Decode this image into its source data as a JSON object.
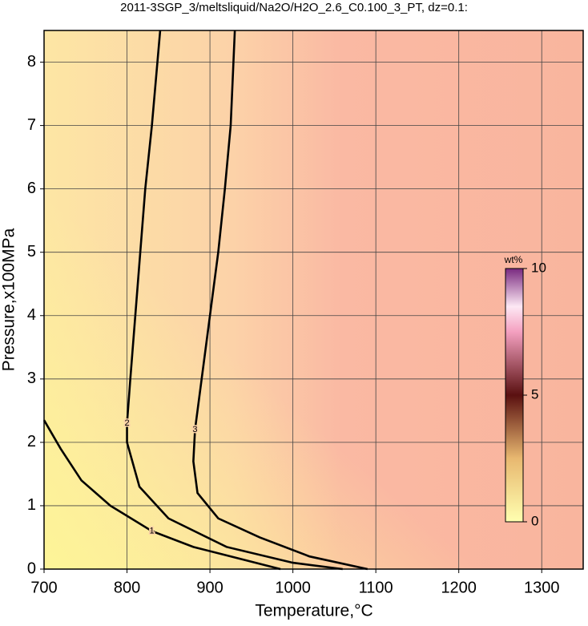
{
  "chart_data": {
    "type": "contour",
    "title": "2011-3SGP_3/meltsliquid/Na2O/H2O_2.6_C0.100_3_PT, dz=0.1:",
    "x_label": "Temperature,°C",
    "y_label": "Pressure,x100MPa",
    "xlim": [
      700,
      1350
    ],
    "ylim": [
      0,
      8.5
    ],
    "xticks": [
      700,
      800,
      900,
      1000,
      1100,
      1200,
      1300
    ],
    "yticks": [
      0,
      1,
      2,
      3,
      4,
      5,
      6,
      7,
      8
    ],
    "grid": true,
    "contours": [
      {
        "level": 1,
        "x": [
          700,
          720,
          745,
          780,
          830,
          880,
          940,
          985
        ],
        "y": [
          2.35,
          1.9,
          1.4,
          1.0,
          0.6,
          0.35,
          0.15,
          0
        ]
      },
      {
        "level": 2,
        "x": [
          840,
          830,
          822,
          816,
          810,
          804,
          800,
          800,
          815,
          850,
          920,
          1000,
          1060
        ],
        "y": [
          8.5,
          7,
          6,
          5,
          4,
          3,
          2.3,
          2.0,
          1.3,
          0.8,
          0.35,
          0.1,
          0
        ]
      },
      {
        "level": 3,
        "x": [
          930,
          925,
          918,
          910,
          900,
          890,
          882,
          880,
          885,
          910,
          960,
          1020,
          1090
        ],
        "y": [
          8.5,
          7,
          6,
          5,
          4,
          3,
          2.2,
          1.7,
          1.2,
          0.8,
          0.5,
          0.2,
          0
        ]
      }
    ],
    "colorbar": {
      "label": "wt%",
      "lim": [
        0,
        10
      ],
      "ticks": [
        0,
        5,
        10
      ]
    }
  }
}
